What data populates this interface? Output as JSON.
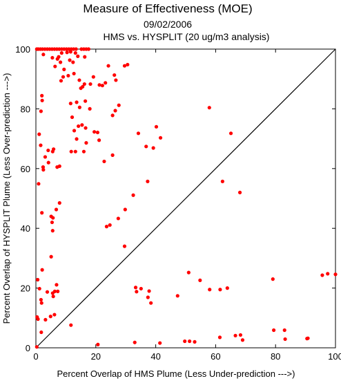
{
  "chart_data": {
    "type": "scatter",
    "title": "Measure of Effectiveness (MOE)",
    "subtitle_date": "09/02/2006",
    "subtitle_analysis": "HMS vs. HYSPLIT  (20 ug/m3 analysis)",
    "xlabel": "Percent Overlap of HMS Plume (Less Under-prediction --->)",
    "ylabel": "Percent Overlap of HYSPLIT Plume (Less Over-prediction --->)",
    "xlim": [
      0,
      100
    ],
    "ylim": [
      0,
      100
    ],
    "xticks": [
      "0",
      "20",
      "40",
      "60",
      "80",
      "100"
    ],
    "yticks": [
      "0",
      "20",
      "40",
      "60",
      "80",
      "100"
    ],
    "grid": false,
    "reference_line": "diagonal 1:1",
    "point_color": "#ff0000",
    "points": [
      [
        0.3,
        100
      ],
      [
        0.8,
        100
      ],
      [
        1.5,
        100
      ],
      [
        2.2,
        100
      ],
      [
        3,
        100
      ],
      [
        3.8,
        100
      ],
      [
        4.6,
        100
      ],
      [
        5.4,
        100
      ],
      [
        6.2,
        100
      ],
      [
        7,
        100
      ],
      [
        7.8,
        100
      ],
      [
        8.6,
        100
      ],
      [
        9.4,
        100
      ],
      [
        10.2,
        100
      ],
      [
        11,
        100
      ],
      [
        11.8,
        100
      ],
      [
        12.6,
        100
      ],
      [
        13.4,
        100
      ],
      [
        15.2,
        100
      ],
      [
        16,
        100
      ],
      [
        16.8,
        100
      ],
      [
        17.6,
        100
      ],
      [
        2.5,
        98.2
      ],
      [
        5.5,
        97.1
      ],
      [
        7.6,
        97.4
      ],
      [
        8.6,
        98.7
      ],
      [
        10.4,
        98.9
      ],
      [
        11.6,
        99.1
      ],
      [
        13.2,
        98.7
      ],
      [
        7.2,
        96.7
      ],
      [
        8.2,
        95.6
      ],
      [
        6.4,
        94.2
      ],
      [
        11.3,
        96.3
      ],
      [
        12.4,
        95.6
      ],
      [
        14,
        97.6
      ],
      [
        16.3,
        97.4
      ],
      [
        9.4,
        93.2
      ],
      [
        24.2,
        94.4
      ],
      [
        29.6,
        94.4
      ],
      [
        30.6,
        94.8
      ],
      [
        12.7,
        91.8
      ],
      [
        10.8,
        91.1
      ],
      [
        8.4,
        89.4
      ],
      [
        9.1,
        90.7
      ],
      [
        14.5,
        89.6
      ],
      [
        19.2,
        90.7
      ],
      [
        18.2,
        88.3
      ],
      [
        16.2,
        88.3
      ],
      [
        15,
        86.9
      ],
      [
        15.6,
        87.4
      ],
      [
        21.2,
        88
      ],
      [
        22.2,
        87.8
      ],
      [
        23.2,
        88.7
      ],
      [
        26.2,
        91.3
      ],
      [
        26.7,
        89.6
      ],
      [
        2,
        84.4
      ],
      [
        2.1,
        82.8
      ],
      [
        1.7,
        79.2
      ],
      [
        11.6,
        81.8
      ],
      [
        13.6,
        82.2
      ],
      [
        14.6,
        80.5
      ],
      [
        16.5,
        82.6
      ],
      [
        18,
        80
      ],
      [
        25.6,
        77.8
      ],
      [
        26.5,
        79.4
      ],
      [
        27.7,
        81.2
      ],
      [
        12.1,
        77.2
      ],
      [
        14.2,
        74.2
      ],
      [
        15.4,
        74.6
      ],
      [
        12.8,
        72.7
      ],
      [
        16.6,
        73.6
      ],
      [
        19.5,
        72.3
      ],
      [
        20.6,
        72.1
      ],
      [
        21.1,
        69.5
      ],
      [
        13.6,
        69.9
      ],
      [
        16.8,
        68.6
      ],
      [
        11.8,
        65.7
      ],
      [
        13.2,
        65.7
      ],
      [
        16,
        65.7
      ],
      [
        25.6,
        64.5
      ],
      [
        1.1,
        71.5
      ],
      [
        1.6,
        67.8
      ],
      [
        3.1,
        63.9
      ],
      [
        4.1,
        66.1
      ],
      [
        5.6,
        65.7
      ],
      [
        5.9,
        66.5
      ],
      [
        4.2,
        62
      ],
      [
        2.4,
        60.5
      ],
      [
        2.5,
        59.6
      ],
      [
        7.1,
        60.5
      ],
      [
        7.9,
        60.8
      ],
      [
        0.9,
        54.9
      ],
      [
        22.8,
        62.4
      ],
      [
        34.2,
        71.8
      ],
      [
        36.8,
        67.4
      ],
      [
        39.2,
        66.9
      ],
      [
        40.2,
        74
      ],
      [
        41.6,
        70.3
      ],
      [
        37.3,
        55.7
      ],
      [
        57.9,
        80.4
      ],
      [
        65.1,
        71.8
      ],
      [
        62.3,
        55.7
      ],
      [
        68.1,
        52
      ],
      [
        2,
        45.2
      ],
      [
        7.9,
        48.5
      ],
      [
        6.8,
        46.3
      ],
      [
        5.1,
        44
      ],
      [
        5.7,
        43.5
      ],
      [
        5.4,
        42
      ],
      [
        5.6,
        39.2
      ],
      [
        23.6,
        40.6
      ],
      [
        24.7,
        41.1
      ],
      [
        27.5,
        43.3
      ],
      [
        29.8,
        46.3
      ],
      [
        32.5,
        51.1
      ],
      [
        29.6,
        34
      ],
      [
        0.6,
        22.8
      ],
      [
        1.2,
        19.8
      ],
      [
        2.1,
        26.1
      ],
      [
        1.7,
        16.1
      ],
      [
        1.9,
        15
      ],
      [
        3.8,
        18.7
      ],
      [
        5.6,
        18.3
      ],
      [
        5.8,
        17.2
      ],
      [
        6.3,
        18.9
      ],
      [
        6.9,
        21.1
      ],
      [
        7.3,
        18.9
      ],
      [
        5.1,
        30.5
      ],
      [
        0.4,
        10.3
      ],
      [
        0.7,
        9.6
      ],
      [
        1.8,
        5.2
      ],
      [
        3.2,
        9.4
      ],
      [
        4.9,
        10.5
      ],
      [
        6.2,
        11.1
      ],
      [
        11.7,
        7.6
      ],
      [
        33.3,
        20.2
      ],
      [
        33.6,
        18.8
      ],
      [
        35.1,
        19.8
      ],
      [
        37.4,
        16.9
      ],
      [
        37.8,
        19
      ],
      [
        38.4,
        15
      ],
      [
        47.3,
        17.4
      ],
      [
        51,
        25.2
      ],
      [
        54.8,
        22.6
      ],
      [
        58,
        19.5
      ],
      [
        61.5,
        19.5
      ],
      [
        63.9,
        20
      ],
      [
        79.1,
        23
      ],
      [
        95.6,
        24.3
      ],
      [
        97.4,
        24.8
      ],
      [
        100,
        24.6
      ],
      [
        0.3,
        0.3
      ],
      [
        20.7,
        1.1
      ],
      [
        33,
        1.8
      ],
      [
        41.4,
        1.6
      ],
      [
        49.7,
        2.2
      ],
      [
        51.3,
        2.2
      ],
      [
        53,
        2
      ],
      [
        61.4,
        3.5
      ],
      [
        66.6,
        4.1
      ],
      [
        68.3,
        4.3
      ],
      [
        69,
        2.6
      ],
      [
        79.4,
        5.9
      ],
      [
        83,
        5.9
      ],
      [
        83.2,
        2.9
      ],
      [
        90.5,
        3.1
      ],
      [
        90.8,
        3.2
      ]
    ]
  }
}
